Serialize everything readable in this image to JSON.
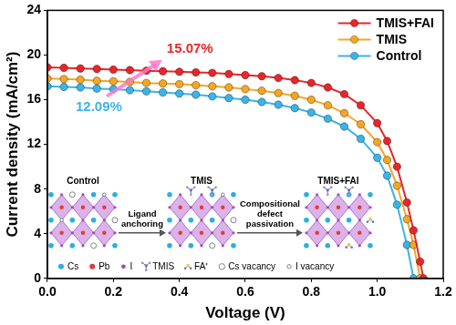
{
  "chart_data": {
    "type": "line",
    "x_label": "Voltage (V)",
    "y_label": "Current density (mA/cm²)",
    "x": [
      0,
      0.05,
      0.1,
      0.15,
      0.2,
      0.25,
      0.3,
      0.35,
      0.4,
      0.45,
      0.5,
      0.55,
      0.6,
      0.65,
      0.7,
      0.75,
      0.8,
      0.85,
      0.9,
      0.95,
      1.0,
      1.03,
      1.06,
      1.09,
      1.11,
      1.13,
      1.14
    ],
    "series": [
      {
        "name": "TMIS+FAI",
        "color": "#e8262a",
        "values": [
          18.9,
          18.85,
          18.8,
          18.75,
          18.7,
          18.65,
          18.6,
          18.55,
          18.5,
          18.45,
          18.4,
          18.3,
          18.2,
          18.1,
          17.95,
          17.75,
          17.5,
          17.1,
          16.5,
          15.5,
          13.9,
          12.3,
          10.0,
          6.8,
          4.3,
          1.5,
          0
        ]
      },
      {
        "name": "TMIS",
        "color": "#f5a623",
        "values": [
          17.9,
          17.85,
          17.8,
          17.7,
          17.65,
          17.6,
          17.5,
          17.45,
          17.4,
          17.3,
          17.2,
          17.1,
          16.95,
          16.8,
          16.6,
          16.35,
          16.0,
          15.5,
          14.8,
          13.8,
          12.2,
          10.6,
          8.3,
          5.3,
          3.0,
          0,
          null
        ]
      },
      {
        "name": "Control",
        "color": "#3bb4e6",
        "values": [
          17.2,
          17.15,
          17.1,
          17.0,
          16.95,
          16.85,
          16.75,
          16.65,
          16.55,
          16.45,
          16.3,
          16.15,
          16.0,
          15.8,
          15.55,
          15.25,
          14.85,
          14.3,
          13.6,
          12.5,
          10.8,
          9.2,
          6.6,
          3.0,
          0,
          null,
          null
        ]
      }
    ],
    "xlim": [
      0,
      1.2
    ],
    "ylim": [
      0,
      24
    ],
    "xticks": [
      {
        "value": 0,
        "label": "0.0"
      },
      {
        "value": 0.2,
        "label": "0.2"
      },
      {
        "value": 0.4,
        "label": "0.4"
      },
      {
        "value": 0.6,
        "label": "0.6"
      },
      {
        "value": 0.8,
        "label": "0.8"
      },
      {
        "value": 1.0,
        "label": "1.0"
      },
      {
        "value": 1.2,
        "label": "1.2"
      }
    ],
    "yticks": [
      0,
      4,
      8,
      12,
      16,
      20,
      24
    ],
    "grid": false,
    "legend": "top right",
    "marker": "circle",
    "line_style": "solid",
    "annotations": [
      {
        "text": "15.07%",
        "color": "#e8262a"
      },
      {
        "text": "12.09%",
        "color": "#3bb4e6"
      }
    ],
    "inset": {
      "stages": [
        "Control",
        "TMIS",
        "TMIS+FAI"
      ],
      "steps": [
        "Ligand anchoring",
        "Compositional defect passivation"
      ],
      "key": [
        "Cs",
        "Pb",
        "I",
        "TMIS",
        "FA⁺",
        "Cs vacancy",
        "I vacancy"
      ]
    }
  }
}
